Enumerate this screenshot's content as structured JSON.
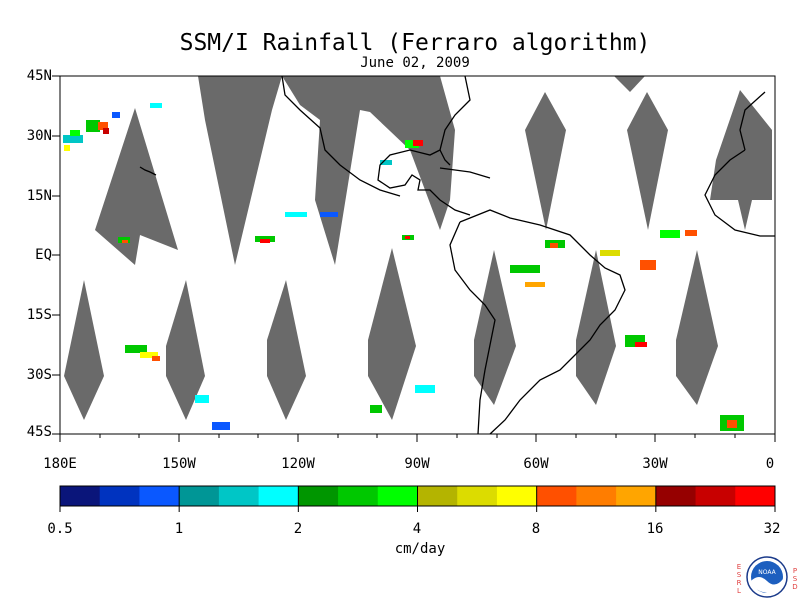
{
  "title": "SSM/I Rainfall (Ferraro algorithm)",
  "subtitle": "June 02, 2009",
  "map": {
    "lat_labels": [
      "45N",
      "30N",
      "15N",
      "EQ",
      "15S",
      "30S",
      "45S"
    ],
    "lon_labels": [
      "180E",
      "150W",
      "120W",
      "90W",
      "60W",
      "30W",
      "0"
    ],
    "extent": {
      "lon_min": -180,
      "lon_max": 0,
      "lat_min": -45,
      "lat_max": 45
    },
    "no_data_color": "#6a6a6a",
    "ocean_color": "#ffffff",
    "coast_color": "#000000"
  },
  "colorbar": {
    "units": "cm/day",
    "tick_labels": [
      "0.5",
      "1",
      "2",
      "4",
      "8",
      "16",
      "32"
    ],
    "colors": [
      "#0a157a",
      "#0033bf",
      "#0a58ff",
      "#009696",
      "#00c6c6",
      "#00ffff",
      "#009600",
      "#00c800",
      "#00ff00",
      "#b4b400",
      "#dcdc00",
      "#ffff00",
      "#ff5000",
      "#ff7d00",
      "#ffa500",
      "#960000",
      "#c80000",
      "#ff0000"
    ]
  },
  "logo": {
    "left_letters": "ESRL",
    "right_letters": "PSD",
    "center_text": "NOAA"
  }
}
